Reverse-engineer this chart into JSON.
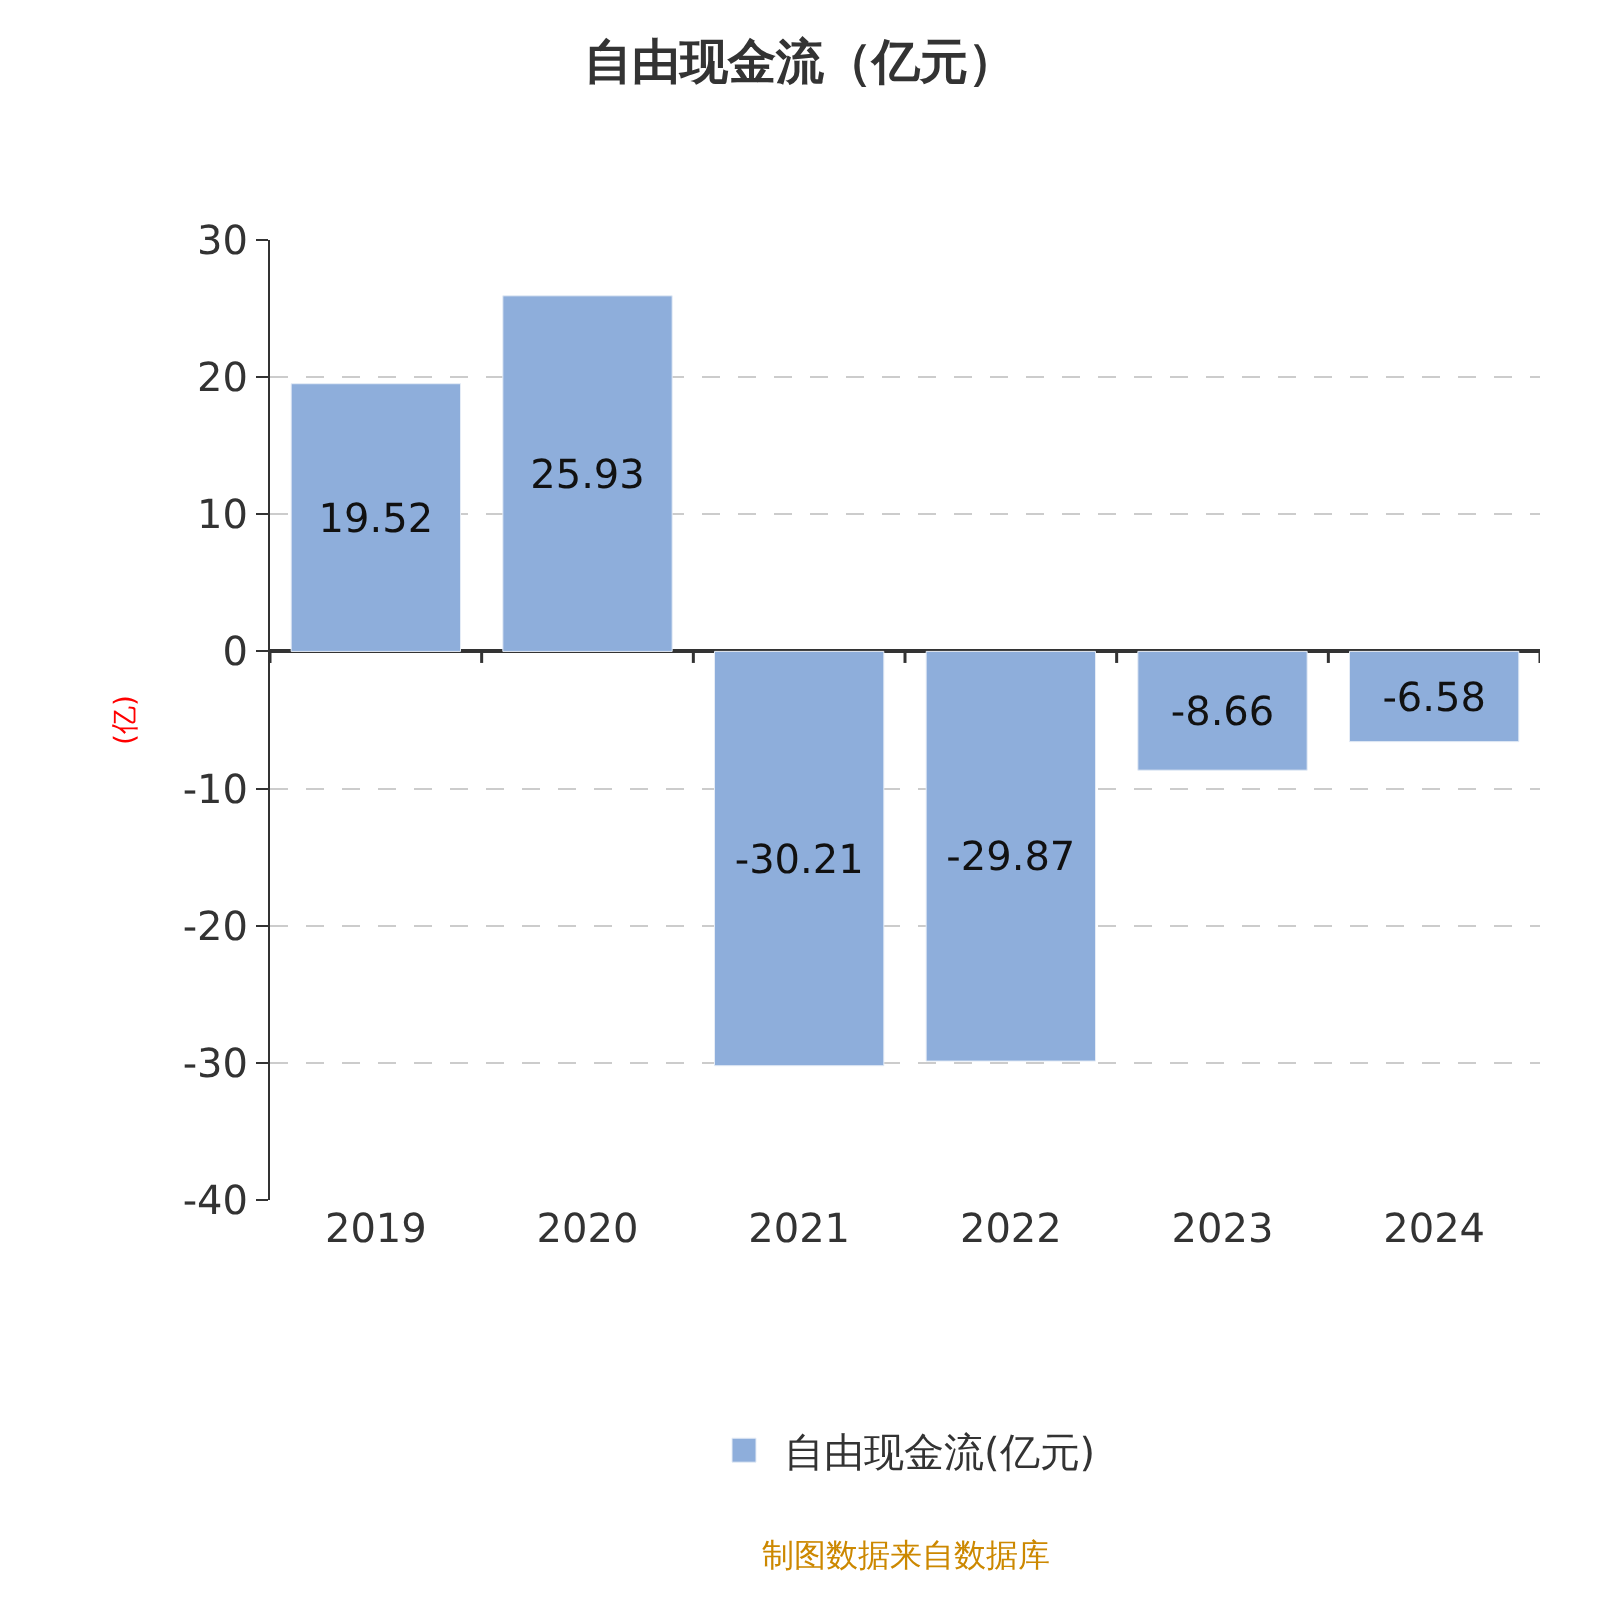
{
  "chart_data": {
    "type": "bar",
    "title": "自由现金流（亿元）",
    "ylabel": "(亿)",
    "categories": [
      "2019",
      "2020",
      "2021",
      "2022",
      "2023",
      "2024"
    ],
    "series": [
      {
        "name": "自由现金流(亿元)",
        "color": "#8eaedb",
        "values": [
          19.52,
          25.93,
          -30.21,
          -29.87,
          -8.66,
          -6.58
        ]
      }
    ],
    "ylim": [
      -40,
      30
    ],
    "yticks": [
      -40,
      -30,
      -20,
      -10,
      0,
      10,
      20,
      30
    ],
    "grid": "y",
    "legend": "bottom",
    "data_labels": true,
    "annotations": [
      "制图数据来自数据库"
    ]
  }
}
